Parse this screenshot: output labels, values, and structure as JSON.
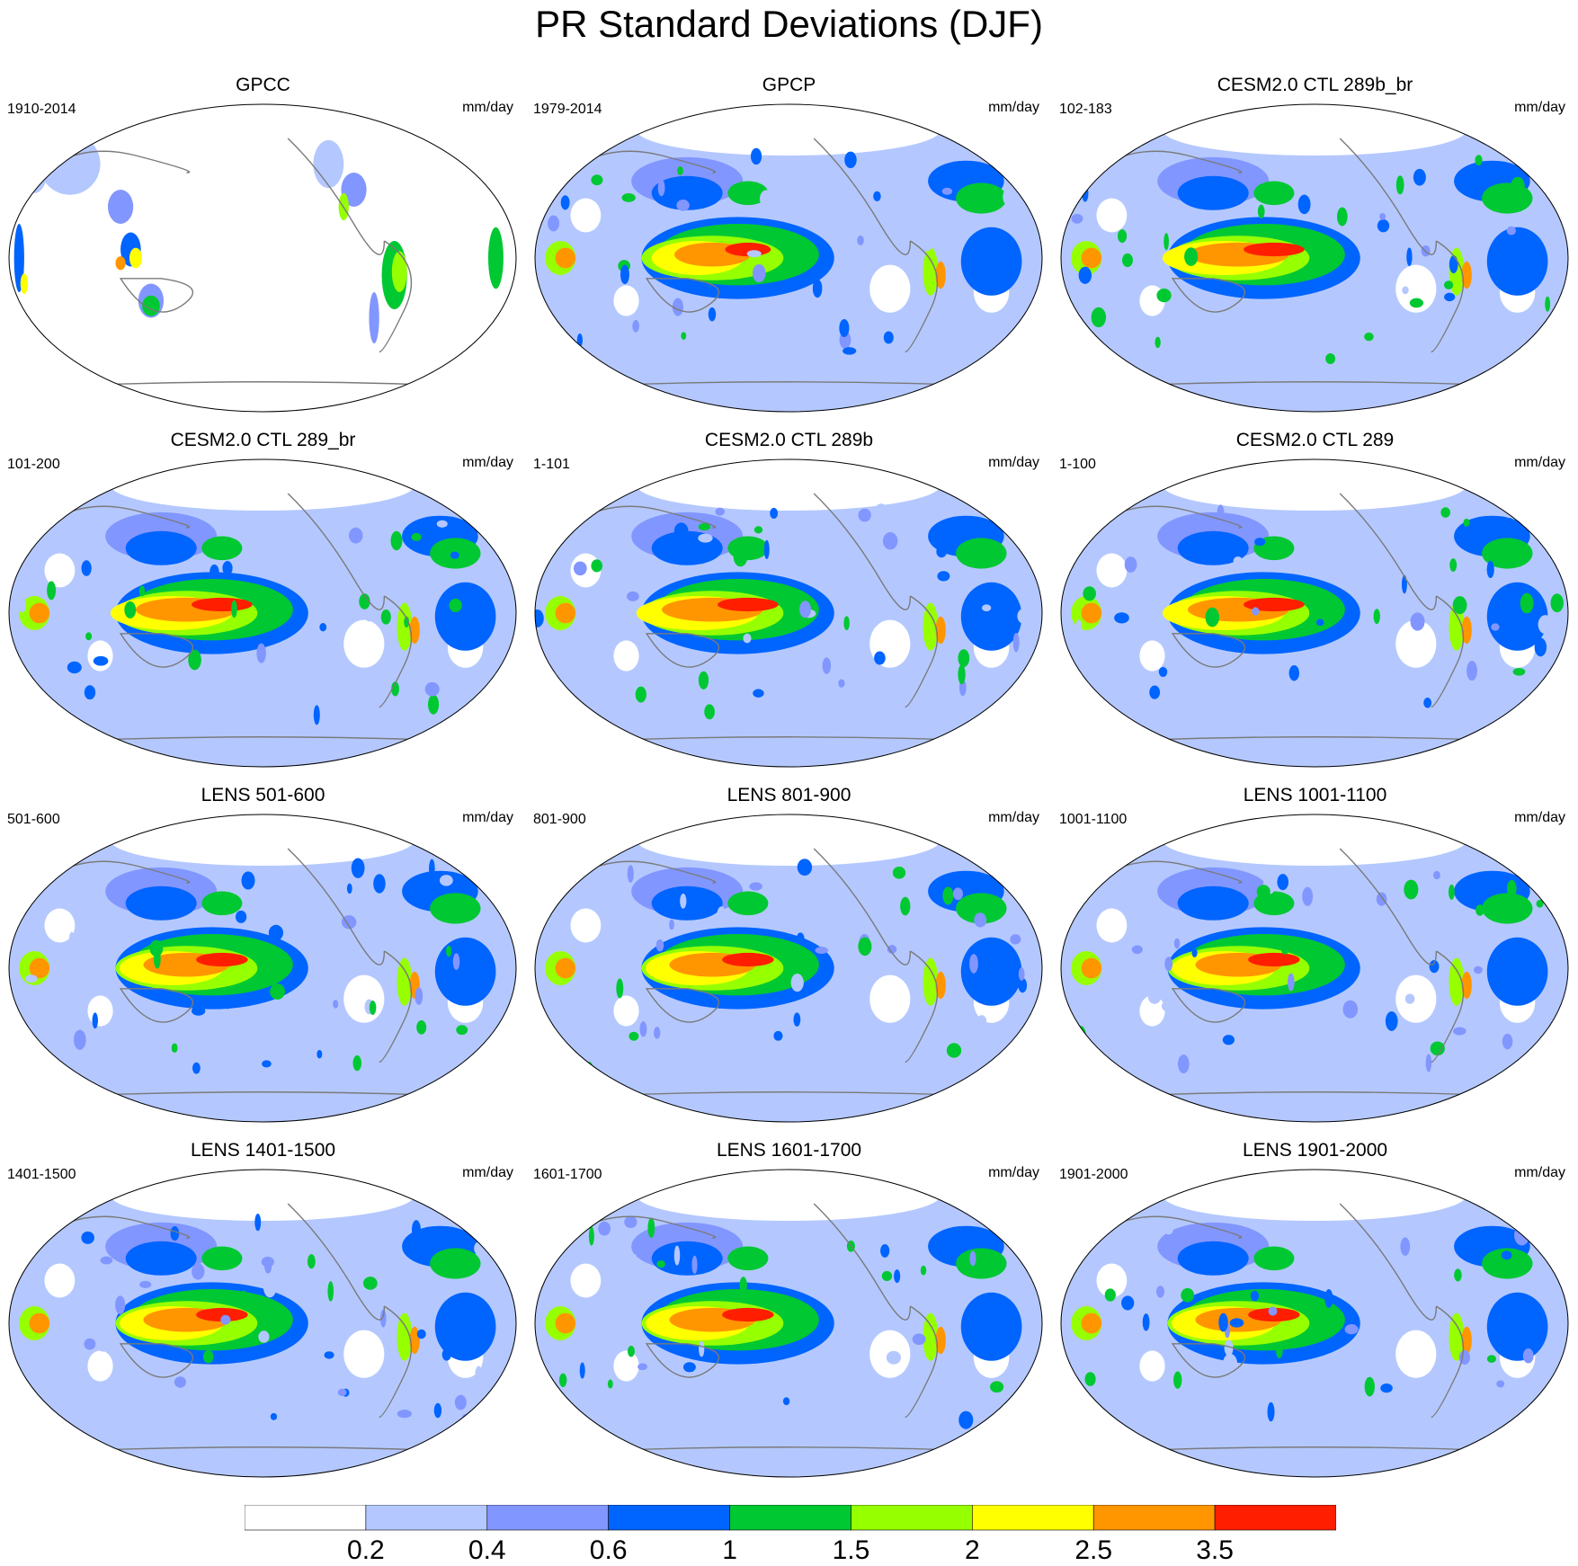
{
  "title": "PR Standard Deviations (DJF)",
  "panels": [
    {
      "title": "GPCC",
      "period": "1910-2014",
      "units": "mm/day",
      "field": "gpcc"
    },
    {
      "title": "GPCP",
      "period": "1979-2014",
      "units": "mm/day",
      "field": "obs"
    },
    {
      "title": "CESM2.0 CTL 289b_br",
      "period": "102-183",
      "units": "mm/day",
      "field": "model"
    },
    {
      "title": "CESM2.0 CTL 289_br",
      "period": "101-200",
      "units": "mm/day",
      "field": "model"
    },
    {
      "title": "CESM2.0 CTL 289b",
      "period": "1-101",
      "units": "mm/day",
      "field": "model"
    },
    {
      "title": "CESM2.0 CTL 289",
      "period": "1-100",
      "units": "mm/day",
      "field": "model"
    },
    {
      "title": "LENS 501-600",
      "period": "501-600",
      "units": "mm/day",
      "field": "lens"
    },
    {
      "title": "LENS 801-900",
      "period": "801-900",
      "units": "mm/day",
      "field": "lens"
    },
    {
      "title": "LENS 1001-1100",
      "period": "1001-1100",
      "units": "mm/day",
      "field": "lens"
    },
    {
      "title": "LENS 1401-1500",
      "period": "1401-1500",
      "units": "mm/day",
      "field": "lens"
    },
    {
      "title": "LENS 1601-1700",
      "period": "1601-1700",
      "units": "mm/day",
      "field": "lens"
    },
    {
      "title": "LENS 1901-2000",
      "period": "1901-2000",
      "units": "mm/day",
      "field": "lens"
    }
  ],
  "colorbar": {
    "levels": [
      "0.2",
      "0.4",
      "0.6",
      "1",
      "1.5",
      "2",
      "2.5",
      "3.5"
    ],
    "colors": [
      "#ffffff",
      "#b4c8ff",
      "#8296ff",
      "#0064ff",
      "#00c832",
      "#96ff00",
      "#ffff00",
      "#ff9600",
      "#ff1e00"
    ]
  },
  "coastline_color": "#7a7a7a"
}
